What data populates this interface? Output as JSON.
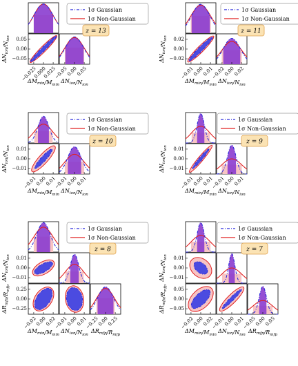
{
  "legend": {
    "gaussian": "1σ Gaussian",
    "non_gaussian": "1σ Non-Gaussian"
  },
  "colors": {
    "gaussian_line": "#2b2bdc",
    "gaussian_fill": "#4b4be0",
    "non_gaussian_line": "#e02020",
    "non_gaussian_fill": "#f7c4c4",
    "overlap_fill": "#8a3ccf",
    "z_badge_fill": "#fbe3b4",
    "z_badge_stroke": "#e0a04a"
  },
  "axis_labels": {
    "mmin": "ΔM_min/M_min",
    "nion": "ΔN_ion/N_ion",
    "rmfp": "ΔR_mfp/R_mfp"
  },
  "chart_data": [
    {
      "type": "corner",
      "z_label": "z = 13",
      "parameters": [
        "ΔM_min/M_min",
        "ΔN_ion/N_ion"
      ],
      "ticks": {
        "mmin": [
          "−0.025",
          "0.000",
          "0.025"
        ],
        "nion_x": [
          "−0.05",
          "0.00",
          "0.05"
        ],
        "nion_y": [
          "−0.05",
          "0.00",
          "0.05"
        ]
      },
      "sigma_gaussian": [
        0.025,
        0.045
      ],
      "sigma_non_gaussian": [
        0.025,
        0.045
      ],
      "correlation": 0.98
    },
    {
      "type": "corner",
      "z_label": "z = 11",
      "parameters": [
        "ΔM_min/M_min",
        "ΔN_ion/N_ion"
      ],
      "ticks": {
        "mmin": [
          "−0.01",
          "0.00",
          "0.01"
        ],
        "nion_x": [
          "−0.02",
          "0.00",
          "0.02"
        ],
        "nion_y": [
          "−0.02",
          "0.00",
          "0.02"
        ]
      },
      "sigma_gaussian": [
        0.008,
        0.014
      ],
      "sigma_non_gaussian": [
        0.009,
        0.016
      ],
      "correlation": 0.97
    },
    {
      "type": "corner",
      "z_label": "z = 10",
      "parameters": [
        "ΔM_min/M_min",
        "ΔN_ion/N_ion"
      ],
      "ticks": {
        "mmin": [
          "−0.01",
          "0.00",
          "0.01"
        ],
        "nion_x": [
          "−0.01",
          "0.00",
          "0.01"
        ],
        "nion_y": [
          "−0.01",
          "0.00",
          "0.01"
        ]
      },
      "sigma_gaussian": [
        0.005,
        0.006
      ],
      "sigma_non_gaussian": [
        0.007,
        0.009
      ],
      "correlation": 0.93
    },
    {
      "type": "corner",
      "z_label": "z = 9",
      "parameters": [
        "ΔM_min/M_min",
        "ΔN_ion/N_ion"
      ],
      "ticks": {
        "mmin": [
          "−0.01",
          "0.00",
          "0.01"
        ],
        "nion_x": [
          "−0.01",
          "0.00",
          "0.01"
        ],
        "nion_y": [
          "−0.01",
          "0.00",
          "0.01"
        ]
      },
      "sigma_gaussian": [
        0.003,
        0.004
      ],
      "sigma_non_gaussian": [
        0.006,
        0.008
      ],
      "correlation": 0.95
    },
    {
      "type": "corner",
      "z_label": "z = 8",
      "parameters": [
        "ΔM_min/M_min",
        "ΔN_ion/N_ion",
        "ΔR_mfp/R_mfp"
      ],
      "ticks": {
        "mmin": [
          "−0.02",
          "0.00",
          "0.02"
        ],
        "nion_x": [
          "−0.01",
          "0.00",
          "0.01"
        ],
        "nion_y": [
          "−0.01",
          "0.00",
          "0.01"
        ],
        "rmfp_x": [
          "−0.25",
          "0.00",
          "0.25"
        ],
        "rmfp_y": [
          "−0.25",
          "0.00",
          "0.25"
        ]
      },
      "sigma_gaussian": [
        0.01,
        0.004,
        0.15
      ],
      "sigma_non_gaussian": [
        0.012,
        0.006,
        0.2
      ]
    },
    {
      "type": "corner",
      "z_label": "z = 7",
      "parameters": [
        "ΔM_min/M_min",
        "ΔN_ion/N_ion",
        "ΔR_mfp/R_mfp"
      ],
      "ticks": {
        "mmin": [
          "−0.02",
          "0.00",
          "0.02"
        ],
        "nion_x": [
          "−0.01",
          "0.00",
          "0.01"
        ],
        "nion_y": [
          "−0.01",
          "0.00",
          "0.01"
        ],
        "rmfp_x": [
          "−0.05",
          "0.00",
          "0.05"
        ],
        "rmfp_y": [
          "−0.05",
          "0.00",
          "0.05"
        ]
      },
      "sigma_gaussian": [
        0.008,
        0.003,
        0.02
      ],
      "sigma_non_gaussian": [
        0.013,
        0.006,
        0.035
      ]
    }
  ]
}
